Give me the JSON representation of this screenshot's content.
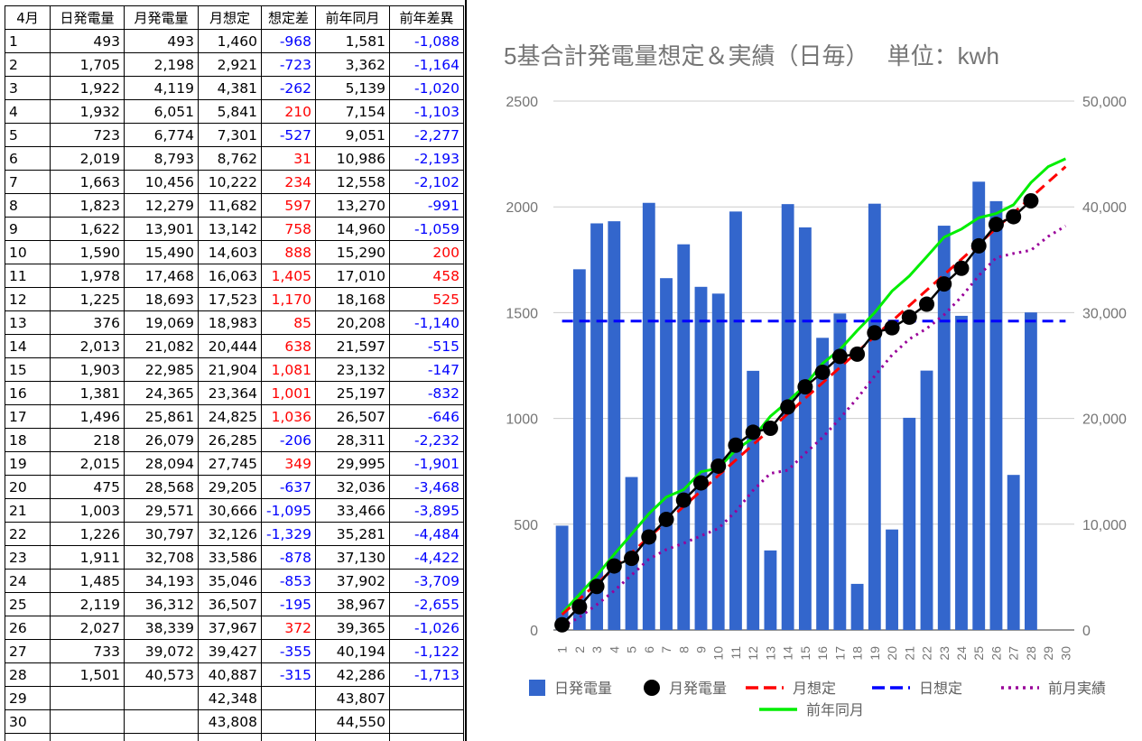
{
  "sheet": {
    "headers": [
      "4月",
      "日発電量",
      "月発電量",
      "月想定",
      "想定差",
      "前年同月",
      "前年差異"
    ],
    "rows": [
      [
        "1",
        "493",
        "493",
        "1,460",
        "-968",
        "1,581",
        "-1,088"
      ],
      [
        "2",
        "1,705",
        "2,198",
        "2,921",
        "-723",
        "3,362",
        "-1,164"
      ],
      [
        "3",
        "1,922",
        "4,119",
        "4,381",
        "-262",
        "5,139",
        "-1,020"
      ],
      [
        "4",
        "1,932",
        "6,051",
        "5,841",
        "210",
        "7,154",
        "-1,103"
      ],
      [
        "5",
        "723",
        "6,774",
        "7,301",
        "-527",
        "9,051",
        "-2,277"
      ],
      [
        "6",
        "2,019",
        "8,793",
        "8,762",
        "31",
        "10,986",
        "-2,193"
      ],
      [
        "7",
        "1,663",
        "10,456",
        "10,222",
        "234",
        "12,558",
        "-2,102"
      ],
      [
        "8",
        "1,823",
        "12,279",
        "11,682",
        "597",
        "13,270",
        "-991"
      ],
      [
        "9",
        "1,622",
        "13,901",
        "13,142",
        "758",
        "14,960",
        "-1,059"
      ],
      [
        "10",
        "1,590",
        "15,490",
        "14,603",
        "888",
        "15,290",
        "200"
      ],
      [
        "11",
        "1,978",
        "17,468",
        "16,063",
        "1,405",
        "17,010",
        "458"
      ],
      [
        "12",
        "1,225",
        "18,693",
        "17,523",
        "1,170",
        "18,168",
        "525"
      ],
      [
        "13",
        "376",
        "19,069",
        "18,983",
        "85",
        "20,208",
        "-1,140"
      ],
      [
        "14",
        "2,013",
        "21,082",
        "20,444",
        "638",
        "21,597",
        "-515"
      ],
      [
        "15",
        "1,903",
        "22,985",
        "21,904",
        "1,081",
        "23,132",
        "-147"
      ],
      [
        "16",
        "1,381",
        "24,365",
        "23,364",
        "1,001",
        "25,197",
        "-832"
      ],
      [
        "17",
        "1,496",
        "25,861",
        "24,825",
        "1,036",
        "26,507",
        "-646"
      ],
      [
        "18",
        "218",
        "26,079",
        "26,285",
        "-206",
        "28,311",
        "-2,232"
      ],
      [
        "19",
        "2,015",
        "28,094",
        "27,745",
        "349",
        "29,995",
        "-1,901"
      ],
      [
        "20",
        "475",
        "28,568",
        "29,205",
        "-637",
        "32,036",
        "-3,468"
      ],
      [
        "21",
        "1,003",
        "29,571",
        "30,666",
        "-1,095",
        "33,466",
        "-3,895"
      ],
      [
        "22",
        "1,226",
        "30,797",
        "32,126",
        "-1,329",
        "35,281",
        "-4,484"
      ],
      [
        "23",
        "1,911",
        "32,708",
        "33,586",
        "-878",
        "37,130",
        "-4,422"
      ],
      [
        "24",
        "1,485",
        "34,193",
        "35,046",
        "-853",
        "37,902",
        "-3,709"
      ],
      [
        "25",
        "2,119",
        "36,312",
        "36,507",
        "-195",
        "38,967",
        "-2,655"
      ],
      [
        "26",
        "2,027",
        "38,339",
        "37,967",
        "372",
        "39,365",
        "-1,026"
      ],
      [
        "27",
        "733",
        "39,072",
        "39,427",
        "-355",
        "40,194",
        "-1,122"
      ],
      [
        "28",
        "1,501",
        "40,573",
        "40,887",
        "-315",
        "42,286",
        "-1,713"
      ],
      [
        "29",
        "",
        "",
        "42,348",
        "",
        "43,807",
        ""
      ],
      [
        "30",
        "",
        "",
        "43,808",
        "",
        "44,550",
        ""
      ],
      [
        "",
        "",
        "",
        "",
        "",
        "",
        ""
      ]
    ],
    "colors": {
      "negative": "#0000ff",
      "positive": "#ff0000"
    }
  },
  "chart_data": {
    "type": "bar",
    "title": "5基合計発電量想定＆実績（日毎）　 単位：kwh",
    "categories": [
      "1",
      "2",
      "3",
      "4",
      "5",
      "6",
      "7",
      "8",
      "9",
      "10",
      "11",
      "12",
      "13",
      "14",
      "15",
      "16",
      "17",
      "18",
      "19",
      "20",
      "21",
      "22",
      "23",
      "24",
      "25",
      "26",
      "27",
      "28",
      "29",
      "30"
    ],
    "y_left": {
      "ticks": [
        "0",
        "500",
        "1000",
        "1500",
        "2000",
        "2500"
      ],
      "range": [
        0,
        2500
      ]
    },
    "y_right": {
      "ticks": [
        "0",
        "10,000",
        "20,000",
        "30,000",
        "40,000",
        "50,000"
      ],
      "range": [
        0,
        50000
      ]
    },
    "grid": true,
    "legend_position": "bottom",
    "series": [
      {
        "name": "日発電量",
        "kind": "bar",
        "axis": "left",
        "color": "#3366cc",
        "values": [
          493,
          1705,
          1922,
          1932,
          723,
          2019,
          1663,
          1823,
          1622,
          1590,
          1978,
          1225,
          376,
          2013,
          1903,
          1381,
          1496,
          218,
          2015,
          475,
          1003,
          1226,
          1911,
          1485,
          2119,
          2027,
          733,
          1501,
          null,
          null
        ]
      },
      {
        "name": "月発電量",
        "kind": "marker-line",
        "axis": "right",
        "color": "#000000",
        "values": [
          493,
          2198,
          4119,
          6051,
          6774,
          8793,
          10456,
          12279,
          13901,
          15490,
          17468,
          18693,
          19069,
          21082,
          22985,
          24365,
          25861,
          26079,
          28094,
          28568,
          29571,
          30797,
          32708,
          34193,
          36312,
          38339,
          39072,
          40573,
          null,
          null
        ]
      },
      {
        "name": "月想定",
        "kind": "dashed-line",
        "axis": "right",
        "color": "#ff0000",
        "values": [
          1460,
          2921,
          4381,
          5841,
          7301,
          8762,
          10222,
          11682,
          13142,
          14603,
          16063,
          17523,
          18983,
          20444,
          21904,
          23364,
          24825,
          26285,
          27745,
          29205,
          30666,
          32126,
          33586,
          35046,
          36507,
          37967,
          39427,
          40887,
          42348,
          43808
        ]
      },
      {
        "name": "日想定",
        "kind": "dashed-line",
        "axis": "left",
        "color": "#0000ff",
        "values": [
          1460,
          1460,
          1460,
          1460,
          1460,
          1460,
          1460,
          1460,
          1460,
          1460,
          1460,
          1460,
          1460,
          1460,
          1460,
          1460,
          1460,
          1460,
          1460,
          1460,
          1460,
          1460,
          1460,
          1460,
          1460,
          1460,
          1460,
          1460,
          1460,
          1460
        ]
      },
      {
        "name": "前月実績",
        "kind": "dotted-line",
        "axis": "right",
        "color": "#990099",
        "values": [
          300,
          1200,
          2400,
          3700,
          5200,
          6700,
          7600,
          8200,
          8900,
          9600,
          11200,
          13200,
          14800,
          15100,
          16700,
          18200,
          20000,
          21900,
          24000,
          26000,
          27500,
          28500,
          29800,
          31500,
          33500,
          35200,
          35600,
          35900,
          37200,
          38200
        ]
      },
      {
        "name": "前年同月",
        "kind": "line",
        "axis": "right",
        "color": "#00ee00",
        "values": [
          1581,
          3362,
          5139,
          7154,
          9051,
          10986,
          12558,
          13270,
          14960,
          15290,
          17010,
          18168,
          20208,
          21597,
          23132,
          25197,
          26507,
          28311,
          29995,
          32036,
          33466,
          35281,
          37130,
          37902,
          38967,
          39365,
          40194,
          42286,
          43807,
          44550
        ]
      }
    ]
  }
}
